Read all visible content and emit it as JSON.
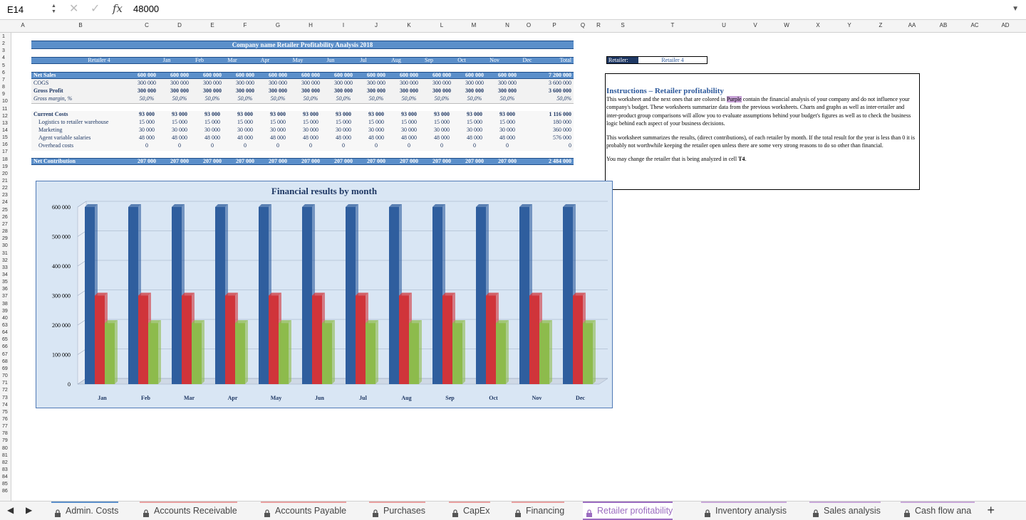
{
  "formula_bar": {
    "cell_ref": "E14",
    "formula": "48000"
  },
  "columns": [
    "A",
    "B",
    "C",
    "D",
    "E",
    "F",
    "G",
    "H",
    "I",
    "J",
    "K",
    "L",
    "M",
    "N",
    "O",
    "P",
    "Q",
    "R",
    "S",
    "T",
    "U",
    "V",
    "W",
    "X",
    "Y",
    "Z",
    "AA",
    "AB",
    "AC",
    "AD"
  ],
  "rows": [
    "1",
    "2",
    "3",
    "4",
    "5",
    "6",
    "7",
    "8",
    "9",
    "10",
    "11",
    "12",
    "13",
    "14",
    "15",
    "16",
    "17",
    "18",
    "19",
    "20",
    "21",
    "22",
    "23",
    "24",
    "25",
    "26",
    "27",
    "28",
    "29",
    "30",
    "31",
    "32",
    "33",
    "34",
    "35",
    "36",
    "37",
    "38",
    "39",
    "40",
    "63",
    "64",
    "65",
    "66",
    "67",
    "68",
    "69",
    "70",
    "71",
    "72",
    "73",
    "74",
    "75",
    "76",
    "77",
    "78",
    "79",
    "80",
    "81",
    "82",
    "83",
    "84",
    "85",
    "86"
  ],
  "report": {
    "title": "Company name Retailer Profitability Analysis 2018",
    "retailer_header": "Retailer 4",
    "months": [
      "Jan",
      "Feb",
      "Mar",
      "Apr",
      "May",
      "Jun",
      "Jul",
      "Aug",
      "Sep",
      "Oct",
      "Nov",
      "Dec"
    ],
    "total_header": "Total",
    "lines": [
      {
        "label": "Net Sales",
        "values": [
          "600 000",
          "600 000",
          "600 000",
          "600 000",
          "600 000",
          "600 000",
          "600 000",
          "600 000",
          "600 000",
          "600 000",
          "600 000",
          "600 000"
        ],
        "total": "7 200 000",
        "style": "band"
      },
      {
        "label": "COGS",
        "values": [
          "300 000",
          "300 000",
          "300 000",
          "300 000",
          "300 000",
          "300 000",
          "300 000",
          "300 000",
          "300 000",
          "300 000",
          "300 000",
          "300 000"
        ],
        "total": "3 600 000",
        "style": "normal"
      },
      {
        "label": "Gross Profit",
        "values": [
          "300 000",
          "300 000",
          "300 000",
          "300 000",
          "300 000",
          "300 000",
          "300 000",
          "300 000",
          "300 000",
          "300 000",
          "300 000",
          "300 000"
        ],
        "total": "3 600 000",
        "style": "bold"
      },
      {
        "label": "Gross margin, %",
        "values": [
          "50,0%",
          "50,0%",
          "50,0%",
          "50,0%",
          "50,0%",
          "50,0%",
          "50,0%",
          "50,0%",
          "50,0%",
          "50,0%",
          "50,0%",
          "50,0%"
        ],
        "total": "50,0%",
        "style": "italic"
      },
      {
        "label": "Current Costs",
        "values": [
          "93 000",
          "93 000",
          "93 000",
          "93 000",
          "93 000",
          "93 000",
          "93 000",
          "93 000",
          "93 000",
          "93 000",
          "93 000",
          "93 000"
        ],
        "total": "1 116 000",
        "style": "bold"
      },
      {
        "label": "Logistics to retailer warehouse",
        "values": [
          "15 000",
          "15 000",
          "15 000",
          "15 000",
          "15 000",
          "15 000",
          "15 000",
          "15 000",
          "15 000",
          "15 000",
          "15 000",
          "15 000"
        ],
        "total": "180 000",
        "style": "indent"
      },
      {
        "label": "Marketing",
        "values": [
          "30 000",
          "30 000",
          "30 000",
          "30 000",
          "30 000",
          "30 000",
          "30 000",
          "30 000",
          "30 000",
          "30 000",
          "30 000",
          "30 000"
        ],
        "total": "360 000",
        "style": "indent"
      },
      {
        "label": "Agent variable salaries",
        "values": [
          "48 000",
          "48 000",
          "48 000",
          "48 000",
          "48 000",
          "48 000",
          "48 000",
          "48 000",
          "48 000",
          "48 000",
          "48 000",
          "48 000"
        ],
        "total": "576 000",
        "style": "indent"
      },
      {
        "label": "Overhead costs",
        "values": [
          "0",
          "0",
          "0",
          "0",
          "0",
          "0",
          "0",
          "0",
          "0",
          "0",
          "0",
          "0"
        ],
        "total": "0",
        "style": "indent"
      },
      {
        "label": "Net Contribution",
        "values": [
          "207 000",
          "207 000",
          "207 000",
          "207 000",
          "207 000",
          "207 000",
          "207 000",
          "207 000",
          "207 000",
          "207 000",
          "207 000",
          "207 000"
        ],
        "total": "2 484 000",
        "style": "band"
      }
    ]
  },
  "selector": {
    "label": "Retailer:",
    "value": "Retailer 4"
  },
  "instructions": {
    "title": "Instructions – Retailer profitability",
    "p1_before": "This worksheet and the next ones that are colored in ",
    "p1_highlight": "Purple",
    "p1_after": " contain the financial analysis of your company and do not influence your company's budget. These worksheets summarize data from the previous worksheets. Charts and graphs as well as inter-retailer and inter-product group comparisons will allow you to evaluate assumptions behind your budget's figures as well as to check the business logic behind each aspect of your business decisions.",
    "p2": "This worksheet summarizes the results, (direct contributions), of each retailer by month. If the total result for the year is less than 0 it is probably not worthwhile keeping the retailer open unless there are some very strong reasons to do so other than financial.",
    "p3_before": "You may change the retailer that is being analyzed in cell ",
    "p3_bold": "T4",
    "p3_after": "."
  },
  "chart_data": {
    "type": "bar",
    "title": "Financial results by month",
    "categories": [
      "Jan",
      "Feb",
      "Mar",
      "Apr",
      "May",
      "Jun",
      "Jul",
      "Aug",
      "Sep",
      "Oct",
      "Nov",
      "Dec"
    ],
    "series": [
      {
        "values": [
          600000,
          600000,
          600000,
          600000,
          600000,
          600000,
          600000,
          600000,
          600000,
          600000,
          600000,
          600000
        ],
        "color": "#2f5e9e"
      },
      {
        "values": [
          300000,
          300000,
          300000,
          300000,
          300000,
          300000,
          300000,
          300000,
          300000,
          300000,
          300000,
          300000
        ],
        "color": "#d0343a"
      },
      {
        "values": [
          207000,
          207000,
          207000,
          207000,
          207000,
          207000,
          207000,
          207000,
          207000,
          207000,
          207000,
          207000
        ],
        "color": "#8dbb4c"
      }
    ],
    "ylim": [
      0,
      600000
    ],
    "yticks": [
      "0",
      "100 000",
      "200 000",
      "300 000",
      "400 000",
      "500 000",
      "600 000"
    ],
    "grid": true,
    "legend": "none"
  },
  "tabs": [
    {
      "label": "Admin. Costs",
      "active": false,
      "accent": "#5b8fca"
    },
    {
      "label": "Accounts Receivable",
      "active": false,
      "accent": "#e8a0a0"
    },
    {
      "label": "Accounts Payable",
      "active": false,
      "accent": "#e8a0a0"
    },
    {
      "label": "Purchases",
      "active": false,
      "accent": "#e8a0a0"
    },
    {
      "label": "CapEx",
      "active": false,
      "accent": "#e8a0a0"
    },
    {
      "label": "Financing",
      "active": false,
      "accent": "#e8a0a0"
    },
    {
      "label": "Retailer profitability",
      "active": true,
      "accent": "#9b6cc0"
    },
    {
      "label": "Inventory analysis",
      "active": false,
      "accent": "#c8a8d8"
    },
    {
      "label": "Sales analysis",
      "active": false,
      "accent": "#c8a8d8"
    },
    {
      "label": "Cash flow ana",
      "active": false,
      "accent": "#c8a8d8"
    }
  ],
  "add_sheet": "+"
}
